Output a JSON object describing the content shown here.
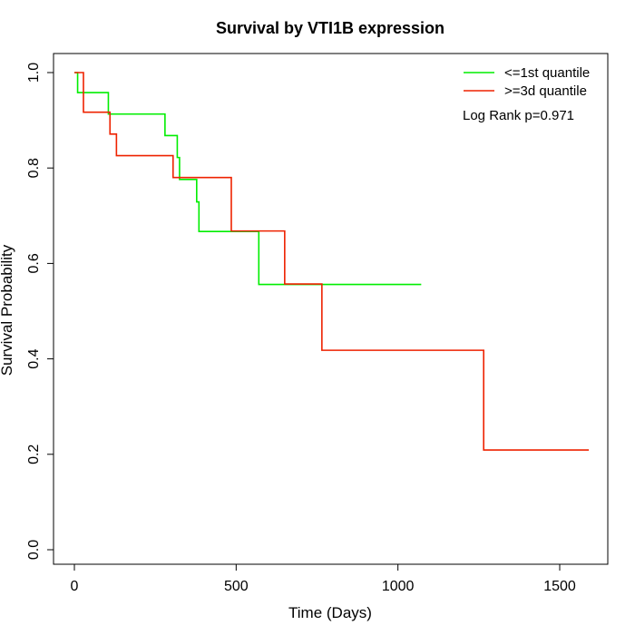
{
  "chart_data": {
    "type": "line",
    "step": true,
    "title": "Survival by VTI1B expression",
    "xlabel": "Time (Days)",
    "ylabel": "Survival Probability",
    "xlim": [
      0,
      1600
    ],
    "ylim": [
      0,
      1
    ],
    "x_ticks": [
      0,
      500,
      1000,
      1500
    ],
    "y_ticks": [
      0.0,
      0.2,
      0.4,
      0.6,
      0.8,
      1.0
    ],
    "x_tick_labels": [
      "0",
      "500",
      "1000",
      "1500"
    ],
    "y_tick_labels": [
      "0.0",
      "0.2",
      "0.4",
      "0.6",
      "0.8",
      "1.0"
    ],
    "grid": false,
    "legend_position": "top-right",
    "annotation": "Log Rank p=0.971",
    "series": [
      {
        "name": "<=1st quantile",
        "color": "#00ee00",
        "x": [
          0,
          10,
          105,
          280,
          318,
          325,
          330,
          378,
          385,
          570,
          1072
        ],
        "y": [
          1.0,
          0.958,
          0.913,
          0.868,
          0.822,
          0.776,
          0.776,
          0.729,
          0.667,
          0.556,
          0.556
        ]
      },
      {
        "name": ">=3d quantile",
        "color": "#ee2200",
        "x": [
          0,
          28,
          110,
          130,
          305,
          485,
          650,
          765,
          1265,
          1590
        ],
        "y": [
          1.0,
          0.917,
          0.871,
          0.826,
          0.78,
          0.668,
          0.557,
          0.418,
          0.209,
          0.209
        ]
      }
    ]
  }
}
